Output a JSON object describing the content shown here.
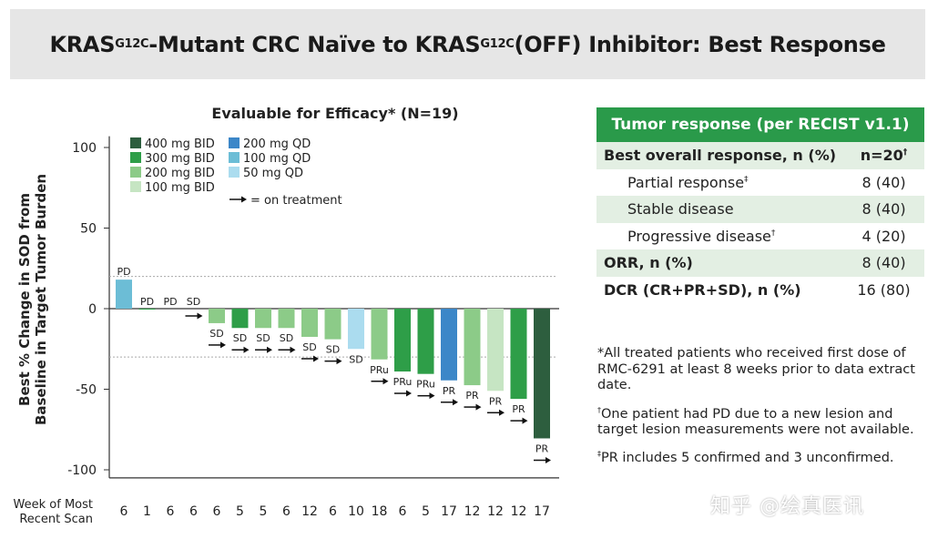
{
  "banner": {
    "title_a": "KRAS",
    "sup_a": "G12C",
    "title_b": "-Mutant CRC Naïve to KRAS",
    "sup_b": "G12C",
    "title_c": "(OFF) Inhibitor: Best Response"
  },
  "chart_data": {
    "type": "bar",
    "title": "Evaluable for Efficacy* (N=19)",
    "ylabel": "Best % Change in SOD from Baseline in Target Tumor Burden",
    "ylabel_lines": [
      "Best % Change in SOD from",
      "Baseline in Target Tumor Burden"
    ],
    "xlabel_lines": [
      "Week of Most",
      "Recent Scan"
    ],
    "ylim": [
      -100,
      100
    ],
    "yticks": [
      100,
      50,
      0,
      -50,
      -100
    ],
    "reference_lines": [
      20,
      -30
    ],
    "grid": false,
    "legend_position": "top-left",
    "legend": [
      {
        "name": "400 mg BID",
        "color": "#2d5e3e"
      },
      {
        "name": "300 mg BID",
        "color": "#2e9e48"
      },
      {
        "name": "200 mg BID",
        "color": "#8ccb88"
      },
      {
        "name": "100 mg BID",
        "color": "#c6e5c3"
      },
      {
        "name": "200 mg QD",
        "color": "#3c87c8"
      },
      {
        "name": "100 mg QD",
        "color": "#6cbdd6"
      },
      {
        "name": "50 mg QD",
        "color": "#abdcef"
      }
    ],
    "arrow_legend": "= on treatment",
    "categories": [
      "6",
      "1",
      "6",
      "6",
      "6",
      "5",
      "5",
      "6",
      "12",
      "6",
      "10",
      "18",
      "6",
      "5",
      "17",
      "12",
      "12",
      "12",
      "17"
    ],
    "values": [
      18,
      0,
      0,
      0,
      -9,
      -12,
      -12,
      -12,
      -17.5,
      -19,
      -25,
      -31.5,
      -39,
      -40.5,
      -44.5,
      -47.5,
      -51,
      -56,
      -80.5
    ],
    "dose": [
      "100 mg QD",
      "300 mg BID",
      "200 mg BID",
      "200 mg BID",
      "200 mg BID",
      "300 mg BID",
      "200 mg BID",
      "200 mg BID",
      "200 mg BID",
      "200 mg BID",
      "50 mg QD",
      "200 mg BID",
      "300 mg BID",
      "300 mg BID",
      "200 mg QD",
      "200 mg BID",
      "100 mg BID",
      "300 mg BID",
      "400 mg BID"
    ],
    "response": [
      "PD",
      "PD",
      "PD",
      "SD",
      "SD",
      "SD",
      "SD",
      "SD",
      "SD",
      "SD",
      "SD",
      "PRu",
      "PRu",
      "PRu",
      "PR",
      "PR",
      "PR",
      "PR",
      "PR"
    ],
    "on_treatment": [
      false,
      false,
      false,
      true,
      true,
      true,
      true,
      true,
      true,
      true,
      false,
      true,
      true,
      true,
      true,
      true,
      true,
      true,
      true
    ]
  },
  "table": {
    "header": "Tumor response (per RECIST v1.1)",
    "rows": [
      {
        "label": "Best overall response, n (%)",
        "sup": "",
        "value": "n=20",
        "value_sup": "†"
      },
      {
        "label": "Partial response",
        "sup": "‡",
        "value": "8 (40)",
        "value_sup": ""
      },
      {
        "label": "Stable disease",
        "sup": "",
        "value": "8 (40)",
        "value_sup": ""
      },
      {
        "label": "Progressive disease",
        "sup": "†",
        "value": "4 (20)",
        "value_sup": ""
      },
      {
        "label": "ORR, n (%)",
        "sup": "",
        "value": "8 (40)",
        "value_sup": ""
      },
      {
        "label": "DCR (CR+PR+SD), n (%)",
        "sup": "",
        "value": "16 (80)",
        "value_sup": ""
      }
    ]
  },
  "notes": [
    {
      "sup": "",
      "text": "*All treated patients who received first dose of RMC-6291 at least 8 weeks prior to data extract date."
    },
    {
      "sup": "†",
      "text": "One patient had PD due to a new lesion and target lesion measurements were not available."
    },
    {
      "sup": "‡",
      "text": "PR includes 5 confirmed and 3 unconfirmed."
    }
  ],
  "watermark": "知乎 @绘真医讯"
}
